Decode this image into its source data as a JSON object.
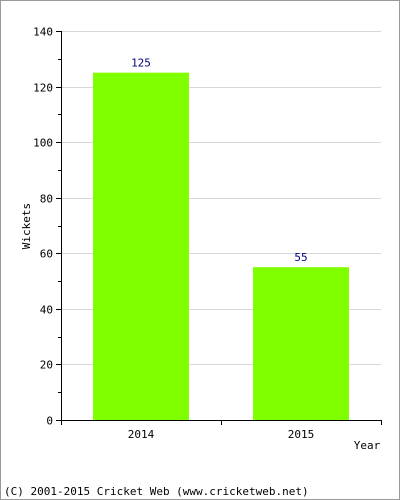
{
  "chart_data": {
    "type": "bar",
    "categories": [
      "2014",
      "2015"
    ],
    "values": [
      125,
      55
    ],
    "data_labels": [
      "125",
      "55"
    ],
    "title": "",
    "xlabel": "Year",
    "ylabel": "Wickets",
    "ylim": [
      0,
      140
    ],
    "yticks": [
      0,
      20,
      40,
      60,
      80,
      100,
      120,
      140
    ],
    "grid": true,
    "legend": "none"
  },
  "footer": {
    "copyright": "(C) 2001-2015 Cricket Web (www.cricketweb.net)"
  },
  "colors": {
    "bar": "#80ff00",
    "data_label": "#00007f",
    "axis": "#000000",
    "grid": "#d8d8d8",
    "border": "#9a9a9a"
  }
}
